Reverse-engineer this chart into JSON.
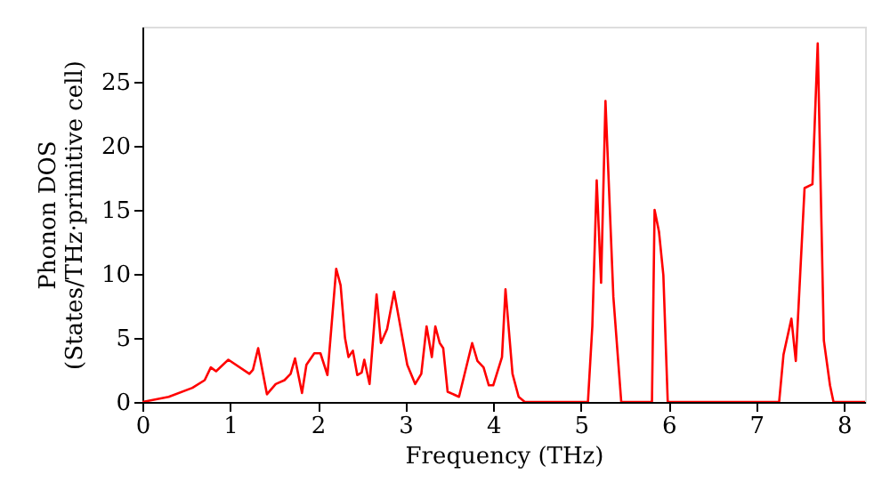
{
  "chart_data": {
    "type": "line",
    "xlabel": "Frequency (THz)",
    "ylabel": "Phonon DOS\n(States/THz·primitive cell)",
    "xlim": [
      0,
      8.24
    ],
    "ylim": [
      0,
      29.3
    ],
    "xticks": [
      0,
      1,
      2,
      3,
      4,
      5,
      6,
      7,
      8
    ],
    "yticks": [
      0,
      5,
      10,
      15,
      20,
      25
    ],
    "grid": false,
    "marker": "none",
    "line_style": "solid",
    "series": [
      {
        "color": "#ff0000",
        "x": [
          0,
          0.3,
          0.57,
          0.71,
          0.78,
          0.84,
          0.98,
          1.22,
          1.26,
          1.32,
          1.42,
          1.52,
          1.62,
          1.69,
          1.74,
          1.82,
          1.87,
          1.96,
          2.03,
          2.11,
          2.21,
          2.26,
          2.31,
          2.35,
          2.4,
          2.45,
          2.5,
          2.53,
          2.59,
          2.67,
          2.72,
          2.79,
          2.87,
          3.02,
          3.11,
          3.18,
          3.24,
          3.3,
          3.34,
          3.39,
          3.43,
          3.48,
          3.61,
          3.76,
          3.82,
          3.89,
          3.95,
          4.0,
          4.1,
          4.14,
          4.22,
          4.29,
          4.36,
          5.08,
          5.13,
          5.18,
          5.23,
          5.28,
          5.37,
          5.46,
          5.81,
          5.84,
          5.89,
          5.94,
          5.99,
          7.26,
          7.31,
          7.4,
          7.45,
          7.55,
          7.64,
          7.7,
          7.77,
          7.84,
          7.88,
          8.24
        ],
        "values": [
          0,
          0.4,
          1.1,
          1.7,
          2.7,
          2.4,
          3.3,
          2.2,
          2.5,
          4.2,
          0.6,
          1.4,
          1.7,
          2.2,
          3.4,
          0.7,
          2.9,
          3.8,
          3.8,
          2.1,
          10.4,
          9.1,
          5.0,
          3.5,
          4.0,
          2.1,
          2.3,
          3.3,
          1.4,
          8.4,
          4.6,
          5.7,
          8.6,
          2.9,
          1.4,
          2.2,
          5.9,
          3.5,
          5.9,
          4.6,
          4.2,
          0.8,
          0.4,
          4.6,
          3.2,
          2.7,
          1.3,
          1.3,
          3.5,
          8.8,
          2.2,
          0.4,
          0,
          0,
          5.9,
          17.3,
          9.3,
          23.5,
          8.2,
          0,
          0,
          15.0,
          13.3,
          9.9,
          0,
          0,
          3.7,
          6.5,
          3.2,
          16.7,
          17.0,
          28.0,
          4.8,
          1.3,
          0,
          0
        ]
      }
    ]
  }
}
